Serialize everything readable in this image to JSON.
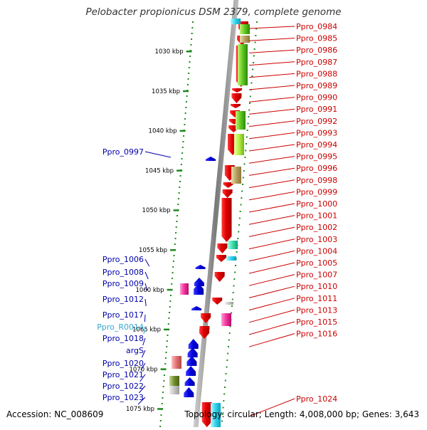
{
  "title": "Pelobacter propionicus DSM 2379, complete genome",
  "accession_text": "Accession: NC_008609",
  "summary_text": "Topology: circular; Length: 4,008,000 bp; Genes: 3,643",
  "colors": {
    "forward_gene": "#e80000",
    "reverse_gene": "#0000e0",
    "forward_label": "#cc0000",
    "reverse_label": "#0000aa",
    "rna_label": "#33aacc",
    "backbone": "#8c8c8c",
    "ruler_dots": "#1e8a1e"
  },
  "ruler_ticks": [
    {
      "label": "1030 kbp"
    },
    {
      "label": "1035 kbp"
    },
    {
      "label": "1040 kbp"
    },
    {
      "label": "1045 kbp"
    },
    {
      "label": "1050 kbp"
    },
    {
      "label": "1055 kbp"
    },
    {
      "label": "1060 kbp"
    },
    {
      "label": "1065 kbp"
    },
    {
      "label": "1070 kbp"
    },
    {
      "label": "1075 kbp"
    }
  ],
  "right_labels": [
    "Ppro_0984",
    "Ppro_0985",
    "Ppro_0986",
    "Ppro_0987",
    "Ppro_0988",
    "Ppro_0989",
    "Ppro_0990",
    "Ppro_0991",
    "Ppro_0992",
    "Ppro_0993",
    "Ppro_0994",
    "Ppro_0995",
    "Ppro_0996",
    "Ppro_0998",
    "Ppro_0999",
    "Ppro_1000",
    "Ppro_1001",
    "Ppro_1002",
    "Ppro_1003",
    "Ppro_1004",
    "Ppro_1005",
    "Ppro_1007",
    "Ppro_1010",
    "Ppro_1011",
    "Ppro_1013",
    "Ppro_1015",
    "Ppro_1016",
    "Ppro_1024"
  ],
  "left_labels": [
    {
      "text": "Ppro_0997",
      "kind": "gene"
    },
    {
      "text": "Ppro_1006",
      "kind": "gene"
    },
    {
      "text": "Ppro_1008",
      "kind": "gene"
    },
    {
      "text": "Ppro_1009",
      "kind": "gene"
    },
    {
      "text": "Ppro_1012",
      "kind": "gene"
    },
    {
      "text": "Ppro_1017",
      "kind": "gene"
    },
    {
      "text": "Ppro_R0014",
      "kind": "rna"
    },
    {
      "text": "Ppro_1018",
      "kind": "gene"
    },
    {
      "text": "argS",
      "kind": "gene"
    },
    {
      "text": "Ppro_1020",
      "kind": "gene"
    },
    {
      "text": "Ppro_1021",
      "kind": "gene"
    },
    {
      "text": "Ppro_1022",
      "kind": "gene"
    },
    {
      "text": "Ppro_1023",
      "kind": "gene"
    }
  ]
}
